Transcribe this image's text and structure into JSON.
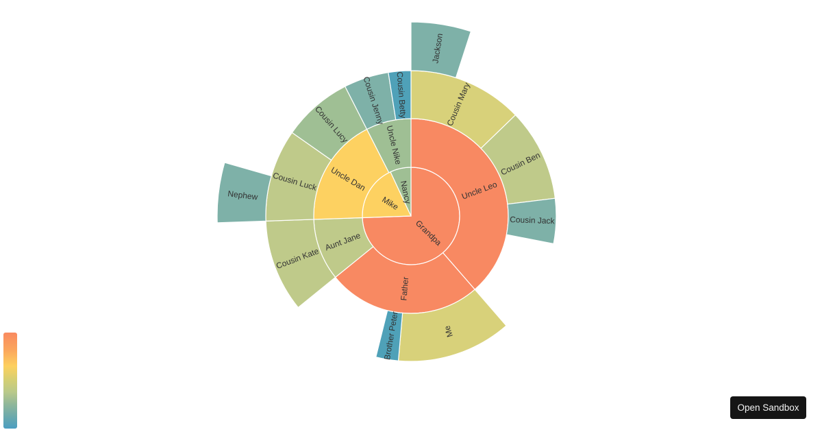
{
  "chart_data": {
    "type": "sunburst",
    "title": "",
    "center": [
      600,
      315
    ],
    "ring_radii": [
      0,
      71,
      142,
      212,
      283
    ],
    "angle_unit": "degrees clockwise from top",
    "nodes": [
      {
        "name": "Grandpa",
        "depth": 1,
        "start": 0,
        "end": 268,
        "color": "#f88962",
        "children": [
          "Uncle Leo",
          "Father",
          "Aunt Jane"
        ]
      },
      {
        "name": "Mike",
        "depth": 1,
        "start": 268,
        "end": 335,
        "color": "#fdd161",
        "children": [
          "Uncle Dan"
        ]
      },
      {
        "name": "Nancy",
        "depth": 1,
        "start": 335,
        "end": 360,
        "color": "#9fbf94",
        "children": [
          "Uncle Nike"
        ]
      },
      {
        "name": "Uncle Leo",
        "depth": 2,
        "start": 0,
        "end": 139,
        "color": "#f88962",
        "children": [
          "Cousin Mary",
          "Cousin Ben",
          "Cousin Jack"
        ]
      },
      {
        "name": "Father",
        "depth": 2,
        "start": 139,
        "end": 231,
        "color": "#f88962",
        "children": [
          "Me",
          "Brother Peter"
        ]
      },
      {
        "name": "Aunt Jane",
        "depth": 2,
        "start": 231,
        "end": 268,
        "color": "#bfca8a",
        "children": [
          "Cousin Kate"
        ]
      },
      {
        "name": "Uncle Dan",
        "depth": 2,
        "start": 268,
        "end": 333,
        "color": "#fdd161",
        "children": [
          "Cousin Luck",
          "Cousin Lucy"
        ]
      },
      {
        "name": "Uncle Nike",
        "depth": 2,
        "start": 333,
        "end": 360,
        "color": "#9fbf94",
        "children": [
          "Cousin Jenny",
          "Cousin Betty"
        ]
      },
      {
        "name": "Cousin Mary",
        "depth": 3,
        "start": 0,
        "end": 46,
        "color": "#d8d17a",
        "children": [
          "Jackson"
        ]
      },
      {
        "name": "Cousin Ben",
        "depth": 3,
        "start": 46,
        "end": 83,
        "color": "#bfca8a",
        "children": []
      },
      {
        "name": "Cousin Jack",
        "depth": 3,
        "start": 83,
        "end": 101,
        "color": "#7eb1a8",
        "children": []
      },
      {
        "name": "Me",
        "depth": 3,
        "start": 139,
        "end": 185,
        "color": "#d8d17a",
        "children": []
      },
      {
        "name": "Brother Peter",
        "depth": 3,
        "start": 185,
        "end": 194,
        "color": "#4fa1b8",
        "children": []
      },
      {
        "name": "Cousin Kate",
        "depth": 3,
        "start": 231,
        "end": 268,
        "color": "#bfca8a",
        "children": []
      },
      {
        "name": "Cousin Luck",
        "depth": 3,
        "start": 268,
        "end": 305,
        "color": "#bfca8a",
        "children": [
          "Nephew"
        ]
      },
      {
        "name": "Cousin Lucy",
        "depth": 3,
        "start": 305,
        "end": 333,
        "color": "#9fbf94",
        "children": []
      },
      {
        "name": "Cousin Jenny",
        "depth": 3,
        "start": 333,
        "end": 351,
        "color": "#7eb1a8",
        "children": []
      },
      {
        "name": "Cousin Betty",
        "depth": 3,
        "start": 351,
        "end": 360,
        "color": "#4fa1b8",
        "children": []
      },
      {
        "name": "Jackson",
        "depth": 4,
        "start": 0,
        "end": 18,
        "color": "#7eb1a8",
        "children": []
      },
      {
        "name": "Nephew",
        "depth": 4,
        "start": 268,
        "end": 286,
        "color": "#7eb1a8",
        "children": []
      }
    ],
    "legend": {
      "type": "continuous-color",
      "orientation": "vertical",
      "position": "bottom-left",
      "colors_top_to_bottom": [
        "#f98a60",
        "#fdd05e",
        "#b9c98a",
        "#4b9ec1"
      ]
    }
  },
  "ui": {
    "open_sandbox_label": "Open Sandbox"
  }
}
